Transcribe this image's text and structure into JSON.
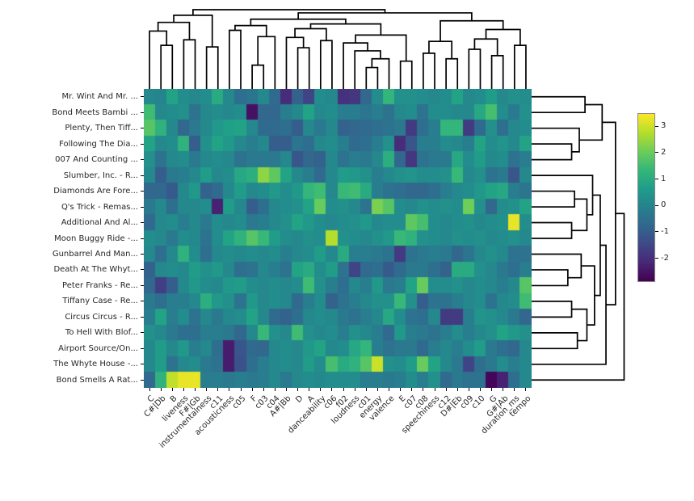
{
  "figure": {
    "background": "#ffffff",
    "kind": "seaborn-clustermap"
  },
  "colors": {
    "dendrogram_line": "#000000",
    "tick_label": "#262626",
    "colorbar_border": "#888888"
  },
  "chart_data": {
    "type": "heatmap",
    "title": "",
    "xlabel": "",
    "ylabel": "",
    "grid": false,
    "legend_position": "colorbar-right",
    "colormap": "viridis",
    "vmin": -2.9,
    "vmax": 3.5,
    "colormap_stops": [
      [
        68,
        1,
        84
      ],
      [
        72,
        40,
        120
      ],
      [
        62,
        74,
        137
      ],
      [
        49,
        104,
        142
      ],
      [
        38,
        130,
        142
      ],
      [
        31,
        158,
        137
      ],
      [
        53,
        183,
        121
      ],
      [
        109,
        205,
        89
      ],
      [
        180,
        222,
        44
      ],
      [
        253,
        231,
        37
      ]
    ],
    "rows": [
      "Mr. Wint And Mr. ...",
      "Bond Meets Bambi ...",
      "Plenty, Then Tiff...",
      "Following The Dia...",
      "007 And Counting ...",
      "Slumber, Inc. - R...",
      "Diamonds Are Fore...",
      "Q's Trick - Remas...",
      "Additional And Al...",
      "Moon Buggy Ride -...",
      "Gunbarrel And Man...",
      "Death At The Whyt...",
      "Peter Franks - Re...",
      "Tiffany Case - Re...",
      "Circus Circus - R...",
      "To Hell With Blof...",
      "Airport Source/On...",
      "The Whyte House -...",
      "Bond Smells A Rat..."
    ],
    "columns": [
      "C",
      "C#|Db",
      "B",
      "liveness",
      "F#|Gb",
      "instrumentalness",
      "c11",
      "acousticness",
      "c05",
      "F",
      "c03",
      "c04",
      "A#|Bb",
      "D",
      "A",
      "danceability",
      "c06",
      "f02",
      "loudness",
      "c01",
      "energy",
      "valence",
      "E",
      "c07",
      "c08",
      "speechiness",
      "c12",
      "D#|Eb",
      "c09",
      "c10",
      "G",
      "G#|Ab",
      "duration_ms",
      "tempo"
    ],
    "matrix": [
      [
        0.1,
        0.0,
        0.8,
        0.2,
        0.1,
        0.2,
        1.0,
        0.1,
        -0.6,
        -0.4,
        0.1,
        -0.7,
        -2.1,
        -0.9,
        -1.6,
        0.2,
        0.1,
        -2.0,
        -1.9,
        -0.8,
        0.2,
        1.3,
        0.3,
        0.3,
        0.2,
        0.1,
        0.2,
        0.8,
        0.1,
        0.2,
        0.6,
        0.1,
        0.3,
        0.2
      ],
      [
        1.5,
        0.1,
        0.2,
        0.3,
        -0.5,
        0.1,
        0.2,
        0.1,
        0.2,
        -2.6,
        -0.8,
        -0.8,
        -0.2,
        0.1,
        0.8,
        0.1,
        0.2,
        -0.2,
        -0.2,
        -0.4,
        -0.2,
        -0.5,
        0.1,
        0.2,
        -0.5,
        0.2,
        0.2,
        0.1,
        0.1,
        0.9,
        1.6,
        0.2,
        -0.3,
        0.3
      ],
      [
        1.8,
        1.2,
        0.1,
        -0.8,
        -0.3,
        0.1,
        0.5,
        0.7,
        0.8,
        0.1,
        -0.7,
        -0.7,
        -0.6,
        -1.0,
        0.1,
        -0.3,
        0.1,
        -0.9,
        -0.8,
        -0.7,
        -0.6,
        -0.5,
        -0.3,
        -1.8,
        -0.6,
        -0.2,
        1.3,
        1.3,
        -1.8,
        -0.7,
        0.3,
        -0.6,
        0.1,
        0.2
      ],
      [
        0.8,
        0.1,
        0.2,
        1.2,
        -1.0,
        0.3,
        0.8,
        0.5,
        0.1,
        -0.2,
        0.1,
        -1.0,
        -1.0,
        -0.4,
        -0.6,
        0.1,
        0.2,
        -0.2,
        -0.7,
        -0.6,
        -0.2,
        0.3,
        -2.1,
        -1.2,
        -0.2,
        -0.2,
        0.2,
        0.1,
        -0.2,
        0.8,
        0.2,
        0.4,
        0.1,
        0.8
      ],
      [
        0.3,
        -0.5,
        0.1,
        0.2,
        -0.3,
        0.1,
        0.2,
        0.1,
        -0.5,
        -0.3,
        -0.3,
        -0.3,
        0.1,
        -1.2,
        -0.8,
        -0.9,
        0.1,
        -0.5,
        -0.2,
        -0.3,
        0.1,
        1.1,
        -0.8,
        -1.9,
        -0.5,
        -0.3,
        -0.3,
        0.9,
        0.2,
        0.6,
        0.1,
        0.2,
        -0.5,
        -0.2
      ],
      [
        0.1,
        -1.0,
        -0.3,
        -0.2,
        0.1,
        0.6,
        0.1,
        0.2,
        0.9,
        1.1,
        2.4,
        1.9,
        0.8,
        0.1,
        -0.2,
        -0.7,
        0.1,
        0.6,
        0.5,
        0.3,
        -0.2,
        0.1,
        0.3,
        0.4,
        0.2,
        0.2,
        0.3,
        1.4,
        0.1,
        0.3,
        -0.5,
        -0.3,
        -1.2,
        0.1
      ],
      [
        -0.8,
        -0.8,
        -1.1,
        0.1,
        0.5,
        -0.9,
        -0.7,
        0.1,
        0.6,
        0.1,
        0.2,
        0.5,
        0.2,
        0.5,
        1.3,
        1.5,
        0.1,
        1.4,
        1.5,
        1.0,
        -0.2,
        -0.5,
        -0.6,
        -0.8,
        -0.8,
        -0.6,
        -0.2,
        0.1,
        0.2,
        0.5,
        0.8,
        0.9,
        -0.2,
        -0.4
      ],
      [
        -0.3,
        0.1,
        -0.6,
        0.1,
        0.1,
        0.2,
        -2.3,
        0.6,
        0.1,
        -1.0,
        -0.6,
        0.1,
        0.2,
        0.3,
        0.8,
        2.0,
        0.2,
        0.3,
        0.1,
        -0.5,
        2.2,
        1.8,
        0.2,
        0.1,
        0.3,
        0.2,
        0.3,
        0.2,
        2.1,
        0.3,
        -0.8,
        0.2,
        0.3,
        0.8
      ],
      [
        -0.7,
        0.1,
        0.2,
        -0.2,
        0.1,
        -0.3,
        0.2,
        0.1,
        0.2,
        -0.3,
        -0.2,
        0.1,
        0.3,
        0.8,
        0.5,
        0.2,
        0.1,
        0.2,
        0.3,
        0.5,
        0.1,
        0.2,
        0.2,
        1.9,
        1.6,
        0.2,
        0.1,
        0.2,
        0.3,
        0.1,
        0.2,
        0.3,
        3.3,
        0.2
      ],
      [
        0.2,
        0.1,
        -0.3,
        0.2,
        0.1,
        -0.5,
        0.2,
        0.8,
        1.2,
        1.8,
        1.4,
        0.6,
        0.2,
        0.1,
        0.3,
        0.2,
        2.8,
        0.3,
        0.2,
        0.1,
        0.3,
        0.5,
        1.4,
        1.2,
        0.3,
        0.2,
        0.1,
        0.3,
        0.2,
        0.3,
        0.1,
        0.2,
        0.3,
        0.1
      ],
      [
        0.1,
        -0.6,
        0.1,
        1.2,
        0.2,
        -0.6,
        0.1,
        0.2,
        0.1,
        0.2,
        0.1,
        0.2,
        -0.2,
        0.1,
        0.2,
        0.6,
        0.1,
        1.0,
        -0.2,
        -0.2,
        -0.3,
        -0.5,
        -1.8,
        -0.5,
        -0.3,
        -0.2,
        -0.3,
        -0.8,
        -0.4,
        0.1,
        0.3,
        0.1,
        -0.5,
        -0.5
      ],
      [
        -0.9,
        0.1,
        0.2,
        0.1,
        0.6,
        0.3,
        0.5,
        0.1,
        -0.6,
        -0.5,
        0.1,
        -0.2,
        -0.5,
        0.8,
        1.0,
        0.2,
        0.6,
        -0.5,
        -1.6,
        -0.7,
        -0.6,
        -1.1,
        -0.7,
        -0.3,
        -0.3,
        -0.6,
        -0.9,
        1.0,
        1.0,
        0.3,
        0.1,
        -0.3,
        -0.6,
        -0.2
      ],
      [
        -0.8,
        -1.7,
        -1.0,
        0.1,
        0.5,
        0.2,
        0.1,
        0.5,
        0.6,
        0.2,
        0.1,
        0.2,
        0.1,
        0.2,
        1.5,
        0.3,
        -0.2,
        -0.6,
        0.1,
        -0.2,
        0.5,
        -0.3,
        -0.2,
        0.8,
        2.0,
        0.2,
        0.2,
        0.3,
        0.1,
        0.2,
        0.1,
        -0.2,
        0.1,
        1.8
      ],
      [
        -0.3,
        -0.6,
        -0.2,
        -0.2,
        0.1,
        1.1,
        0.5,
        0.3,
        -0.5,
        0.5,
        0.1,
        0.2,
        0.1,
        -0.7,
        -0.2,
        0.2,
        -0.9,
        -0.5,
        -0.2,
        0.1,
        0.3,
        0.3,
        1.4,
        0.3,
        -1.0,
        -0.5,
        -0.5,
        -0.2,
        0.1,
        0.2,
        -0.5,
        0.1,
        0.2,
        1.5
      ],
      [
        -0.2,
        0.8,
        -0.2,
        0.2,
        -0.5,
        0.1,
        -0.3,
        0.1,
        0.2,
        0.8,
        0.1,
        -0.7,
        -0.9,
        -0.6,
        0.1,
        0.2,
        0.1,
        -0.3,
        -0.5,
        -0.2,
        0.1,
        0.9,
        0.2,
        -0.5,
        -0.6,
        0.1,
        -1.8,
        -1.8,
        -0.2,
        0.4,
        0.3,
        0.1,
        -0.3,
        -0.8
      ],
      [
        0.3,
        0.1,
        -0.3,
        -0.6,
        -0.6,
        -0.2,
        -0.2,
        -0.3,
        -0.8,
        0.1,
        1.4,
        0.3,
        0.1,
        1.5,
        0.3,
        0.1,
        0.2,
        -0.2,
        0.3,
        0.1,
        -0.2,
        -0.7,
        0.5,
        -0.2,
        -0.3,
        -0.5,
        -0.2,
        0.2,
        -0.2,
        0.1,
        0.3,
        0.8,
        0.5,
        0.3
      ],
      [
        0.1,
        0.6,
        0.1,
        0.5,
        -0.2,
        0.1,
        -0.6,
        -2.4,
        -1.2,
        -0.7,
        -0.8,
        0.1,
        0.2,
        0.1,
        0.5,
        0.8,
        0.1,
        0.2,
        0.9,
        1.3,
        -0.2,
        -0.5,
        -0.3,
        -0.3,
        -0.7,
        -0.2,
        0.1,
        -0.2,
        0.2,
        0.6,
        -0.3,
        -0.6,
        -0.8,
        0.1
      ],
      [
        0.1,
        0.6,
        -0.5,
        0.1,
        0.2,
        -0.3,
        -0.5,
        -2.4,
        -1.3,
        -0.6,
        -0.2,
        0.1,
        0.2,
        0.1,
        0.6,
        0.2,
        1.6,
        1.0,
        1.2,
        1.8,
        3.0,
        0.3,
        0.2,
        0.6,
        2.0,
        0.8,
        0.1,
        -0.3,
        -1.6,
        -0.6,
        -0.3,
        0.2,
        -0.2,
        0.1
      ],
      [
        -0.7,
        1.2,
        2.9,
        3.3,
        3.3,
        -0.2,
        -0.2,
        -0.3,
        -0.2,
        -0.3,
        -0.2,
        0.1,
        -0.3,
        0.1,
        0.2,
        0.1,
        0.2,
        0.2,
        0.2,
        -0.2,
        -0.2,
        -0.3,
        -0.2,
        0.2,
        -0.2,
        0.3,
        -0.7,
        -0.3,
        -0.5,
        -0.5,
        -2.8,
        -2.3,
        -0.6,
        0.1
      ]
    ],
    "colorbar": {
      "ticks": [
        {
          "label": "3",
          "value": 3
        },
        {
          "label": "2",
          "value": 2
        },
        {
          "label": "1",
          "value": 1
        },
        {
          "label": "0",
          "value": 0
        },
        {
          "label": "-1",
          "value": -1
        },
        {
          "label": "-2",
          "value": -2
        }
      ]
    },
    "dendrograms": {
      "top": {
        "leaves": 34,
        "merges": [
          [
            1,
            2,
            0.55
          ],
          [
            0,
            34,
            0.73
          ],
          [
            3,
            4,
            0.62
          ],
          [
            5,
            6,
            0.53
          ],
          [
            35,
            36,
            0.84
          ],
          [
            38,
            37,
            0.93
          ],
          [
            7,
            8,
            0.74
          ],
          [
            9,
            10,
            0.3
          ],
          [
            41,
            11,
            0.66
          ],
          [
            40,
            42,
            0.8
          ],
          [
            13,
            14,
            0.52
          ],
          [
            12,
            44,
            0.65
          ],
          [
            15,
            16,
            0.61
          ],
          [
            45,
            46,
            0.76
          ],
          [
            19,
            20,
            0.27
          ],
          [
            48,
            21,
            0.38
          ],
          [
            18,
            49,
            0.48
          ],
          [
            17,
            50,
            0.58
          ],
          [
            22,
            23,
            0.35
          ],
          [
            51,
            52,
            0.68
          ],
          [
            47,
            53,
            0.82
          ],
          [
            43,
            54,
            0.88
          ],
          [
            24,
            25,
            0.45
          ],
          [
            26,
            27,
            0.38
          ],
          [
            56,
            57,
            0.6
          ],
          [
            28,
            29,
            0.5
          ],
          [
            30,
            31,
            0.42
          ],
          [
            59,
            60,
            0.63
          ],
          [
            32,
            33,
            0.55
          ],
          [
            61,
            62,
            0.75
          ],
          [
            58,
            63,
            0.86
          ],
          [
            55,
            64,
            0.96
          ],
          [
            39,
            65,
            1.0
          ]
        ]
      },
      "right": {
        "leaves": 19,
        "merges": [
          [
            0,
            1,
            0.56
          ],
          [
            3,
            4,
            0.42
          ],
          [
            2,
            20,
            0.5
          ],
          [
            19,
            21,
            0.74
          ],
          [
            6,
            7,
            0.45
          ],
          [
            8,
            9,
            0.42
          ],
          [
            23,
            24,
            0.58
          ],
          [
            5,
            25,
            0.64
          ],
          [
            11,
            12,
            0.38
          ],
          [
            10,
            27,
            0.52
          ],
          [
            13,
            14,
            0.42
          ],
          [
            15,
            16,
            0.48
          ],
          [
            29,
            30,
            0.58
          ],
          [
            28,
            31,
            0.66
          ],
          [
            26,
            32,
            0.72
          ],
          [
            33,
            17,
            0.78
          ],
          [
            22,
            34,
            0.88
          ],
          [
            35,
            18,
            0.97
          ]
        ]
      }
    }
  }
}
